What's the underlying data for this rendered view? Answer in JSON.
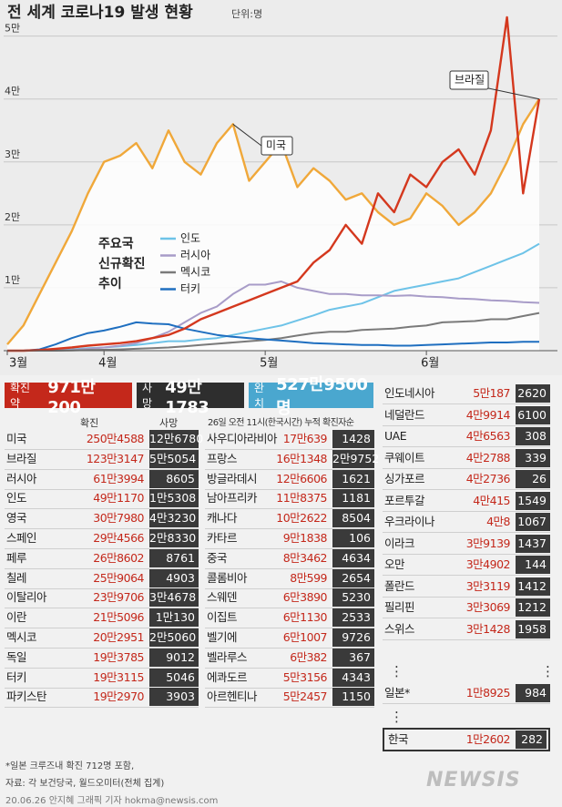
{
  "chart_data": {
    "type": "line",
    "title": "전 세계 코로나19 발생 현황",
    "unit": "단위:명",
    "legend_title": [
      "주요국",
      "신규확진",
      "추이"
    ],
    "categories": [
      "3월",
      null,
      null,
      null,
      null,
      null,
      "4월",
      null,
      null,
      null,
      null,
      null,
      null,
      null,
      null,
      null,
      "5월",
      null,
      null,
      null,
      null,
      null,
      null,
      null,
      null,
      null,
      "6월",
      null,
      null,
      null,
      null,
      null,
      null,
      null
    ],
    "ylim": [
      0,
      54000
    ],
    "yticks": [
      {
        "value": 10000,
        "label": "1만"
      },
      {
        "value": 20000,
        "label": "2만"
      },
      {
        "value": 30000,
        "label": "3만"
      },
      {
        "value": 40000,
        "label": "4만"
      },
      {
        "value": 50000,
        "label": "5만"
      }
    ],
    "grid": true,
    "series": [
      {
        "name": "미국",
        "color": "#f0a83a",
        "values": [
          1000,
          4000,
          9000,
          14000,
          19000,
          25000,
          30000,
          31000,
          33000,
          29000,
          35000,
          30000,
          28000,
          33000,
          36000,
          27000,
          30000,
          33000,
          26000,
          29000,
          27000,
          24000,
          25000,
          22000,
          20000,
          21000,
          25000,
          23000,
          20000,
          22000,
          25000,
          30000,
          36000,
          40000
        ]
      },
      {
        "name": "브라질",
        "color": "#d4381e",
        "values": [
          0,
          0,
          100,
          300,
          500,
          800,
          1000,
          1200,
          1500,
          2000,
          2500,
          3500,
          5000,
          6000,
          7000,
          8000,
          9000,
          10000,
          11000,
          14000,
          16000,
          20000,
          17000,
          25000,
          22000,
          28000,
          26000,
          30000,
          32000,
          28000,
          35000,
          53000,
          25000,
          40000
        ]
      },
      {
        "name": "인도",
        "color": "#6ec3e8",
        "values": [
          0,
          0,
          50,
          100,
          200,
          400,
          500,
          700,
          900,
          1200,
          1500,
          1500,
          1800,
          2000,
          2500,
          3000,
          3500,
          4000,
          4800,
          5600,
          6500,
          7000,
          7500,
          8500,
          9500,
          10000,
          10500,
          11000,
          11500,
          12500,
          13500,
          14500,
          15500,
          17000
        ]
      },
      {
        "name": "러시아",
        "color": "#a89cc8",
        "values": [
          0,
          0,
          0,
          50,
          100,
          300,
          500,
          800,
          1200,
          2000,
          3000,
          4500,
          6000,
          7000,
          9000,
          10500,
          10500,
          11000,
          10000,
          9500,
          9000,
          9000,
          8800,
          8800,
          8700,
          8800,
          8600,
          8500,
          8300,
          8200,
          8000,
          7900,
          7700,
          7600
        ]
      },
      {
        "name": "멕시코",
        "color": "#7a7a7a",
        "values": [
          0,
          0,
          0,
          0,
          50,
          100,
          150,
          200,
          300,
          400,
          500,
          700,
          900,
          1100,
          1300,
          1500,
          1700,
          2000,
          2400,
          2800,
          3000,
          3000,
          3300,
          3400,
          3500,
          3800,
          4000,
          4500,
          4600,
          4700,
          5000,
          5000,
          5500,
          6000
        ]
      },
      {
        "name": "터키",
        "color": "#1f6fc0",
        "values": [
          0,
          0,
          200,
          1000,
          2000,
          2800,
          3200,
          3800,
          4500,
          4300,
          4200,
          3500,
          3000,
          2500,
          2200,
          2000,
          1800,
          1600,
          1400,
          1200,
          1100,
          1000,
          900,
          900,
          800,
          800,
          900,
          1000,
          1100,
          1200,
          1300,
          1300,
          1400,
          1400
        ]
      }
    ]
  },
  "summary": {
    "confirmed": {
      "label": "확진 약",
      "value": "971만200"
    },
    "deaths": {
      "label": "사망",
      "value": "49만1783"
    },
    "recovered": {
      "label": "완치",
      "value": "527만9500명"
    }
  },
  "tables": {
    "left": {
      "headers": [
        "확진",
        "사망"
      ],
      "rows": [
        [
          "미국",
          "250만4588",
          "12만6780"
        ],
        [
          "브라질",
          "123만3147",
          "5만5054"
        ],
        [
          "러시아",
          "61만3994",
          "8605"
        ],
        [
          "인도",
          "49만1170",
          "1만5308"
        ],
        [
          "영국",
          "30만7980",
          "4만3230"
        ],
        [
          "스페인",
          "29만4566",
          "2만8330"
        ],
        [
          "페루",
          "26만8602",
          "8761"
        ],
        [
          "칠레",
          "25만9064",
          "4903"
        ],
        [
          "이탈리아",
          "23만9706",
          "3만4678"
        ],
        [
          "이란",
          "21만5096",
          "1만130"
        ],
        [
          "멕시코",
          "20만2951",
          "2만5060"
        ],
        [
          "독일",
          "19만3785",
          "9012"
        ],
        [
          "터키",
          "19만3115",
          "5046"
        ],
        [
          "파키스탄",
          "19만2970",
          "3903"
        ]
      ]
    },
    "middle": {
      "note": "26일 오전 11시(한국시간) 누적 확진자순",
      "rows": [
        [
          "사우디아라비아",
          "17만639",
          "1428"
        ],
        [
          "프랑스",
          "16만1348",
          "2만9752"
        ],
        [
          "방글라데시",
          "12만6606",
          "1621"
        ],
        [
          "남아프리카",
          "11만8375",
          "1181"
        ],
        [
          "캐나다",
          "10만2622",
          "8504"
        ],
        [
          "카타르",
          "9만1838",
          "106"
        ],
        [
          "중국",
          "8만3462",
          "4634"
        ],
        [
          "콜롬비아",
          "8만599",
          "2654"
        ],
        [
          "스웨덴",
          "6만3890",
          "5230"
        ],
        [
          "이집트",
          "6만1130",
          "2533"
        ],
        [
          "벨기에",
          "6만1007",
          "9726"
        ],
        [
          "벨라루스",
          "6만382",
          "367"
        ],
        [
          "에콰도르",
          "5만3156",
          "4343"
        ],
        [
          "아르헨티나",
          "5만2457",
          "1150"
        ]
      ]
    },
    "right": {
      "rows": [
        [
          "인도네시아",
          "5만187",
          "2620"
        ],
        [
          "네덜란드",
          "4만9914",
          "6100"
        ],
        [
          "UAE",
          "4만6563",
          "308"
        ],
        [
          "쿠웨이트",
          "4만2788",
          "339"
        ],
        [
          "싱가포르",
          "4만2736",
          "26"
        ],
        [
          "포르투갈",
          "4만415",
          "1549"
        ],
        [
          "우크라이나",
          "4만8",
          "1067"
        ],
        [
          "이라크",
          "3만9139",
          "1437"
        ],
        [
          "오만",
          "3만4902",
          "144"
        ],
        [
          "폴란드",
          "3만3119",
          "1412"
        ],
        [
          "필리핀",
          "3만3069",
          "1212"
        ],
        [
          "스위스",
          "3만1428",
          "1958"
        ]
      ],
      "ellipsis": "⋮",
      "japan": [
        "일본*",
        "1만8925",
        "984"
      ],
      "korea": [
        "한국",
        "1만2602",
        "282"
      ]
    }
  },
  "footer": {
    "notes": [
      "*일본 크루즈내 확진 712명 포함,",
      "자료: 각 보건당국, 월드오미터(전체 집계)",
      "20.06.26 안지혜 그래픽 기자 hokma@newsis.com"
    ],
    "logo": "NEWSIS"
  }
}
